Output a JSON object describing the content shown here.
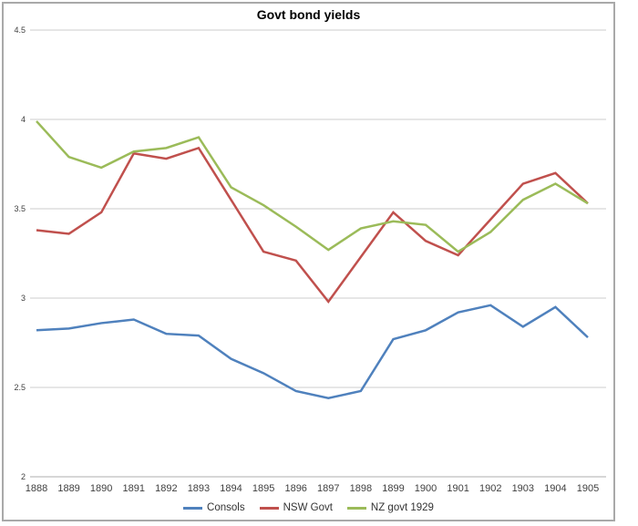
{
  "chart_data": {
    "type": "line",
    "title": "Govt bond yields",
    "categories": [
      "1888",
      "1889",
      "1890",
      "1891",
      "1892",
      "1893",
      "1894",
      "1895",
      "1896",
      "1897",
      "1898",
      "1899",
      "1900",
      "1901",
      "1902",
      "1903",
      "1904",
      "1905"
    ],
    "series": [
      {
        "name": "Consols",
        "color": "#4F81BD",
        "values": [
          2.82,
          2.83,
          2.86,
          2.88,
          2.8,
          2.79,
          2.66,
          2.58,
          2.48,
          2.44,
          2.48,
          2.77,
          2.82,
          2.92,
          2.96,
          2.84,
          2.95,
          2.78
        ]
      },
      {
        "name": "NSW Govt",
        "color": "#C0504D",
        "values": [
          3.38,
          3.36,
          3.48,
          3.81,
          3.78,
          3.84,
          3.55,
          3.26,
          3.21,
          2.98,
          3.23,
          3.48,
          3.32,
          3.24,
          3.44,
          3.64,
          3.7,
          3.53
        ]
      },
      {
        "name": "NZ govt 1929",
        "color": "#9BBB59",
        "values": [
          3.99,
          3.79,
          3.73,
          3.82,
          3.84,
          3.9,
          3.62,
          3.52,
          3.4,
          3.27,
          3.39,
          3.43,
          3.41,
          3.26,
          3.37,
          3.55,
          3.64,
          3.53
        ]
      }
    ],
    "y_ticks": [
      "4.5",
      "4",
      "3.5",
      "3",
      "2.5",
      "2"
    ],
    "ylim": [
      2,
      4.5
    ],
    "xlabel": "",
    "ylabel": "",
    "grid": true,
    "legend_position": "bottom",
    "colors": {
      "gridline": "#CCCCCC",
      "axis_line": "#ACACAC",
      "frame_border": "#A9A9A9",
      "label_text": "#3F3F3F"
    }
  }
}
